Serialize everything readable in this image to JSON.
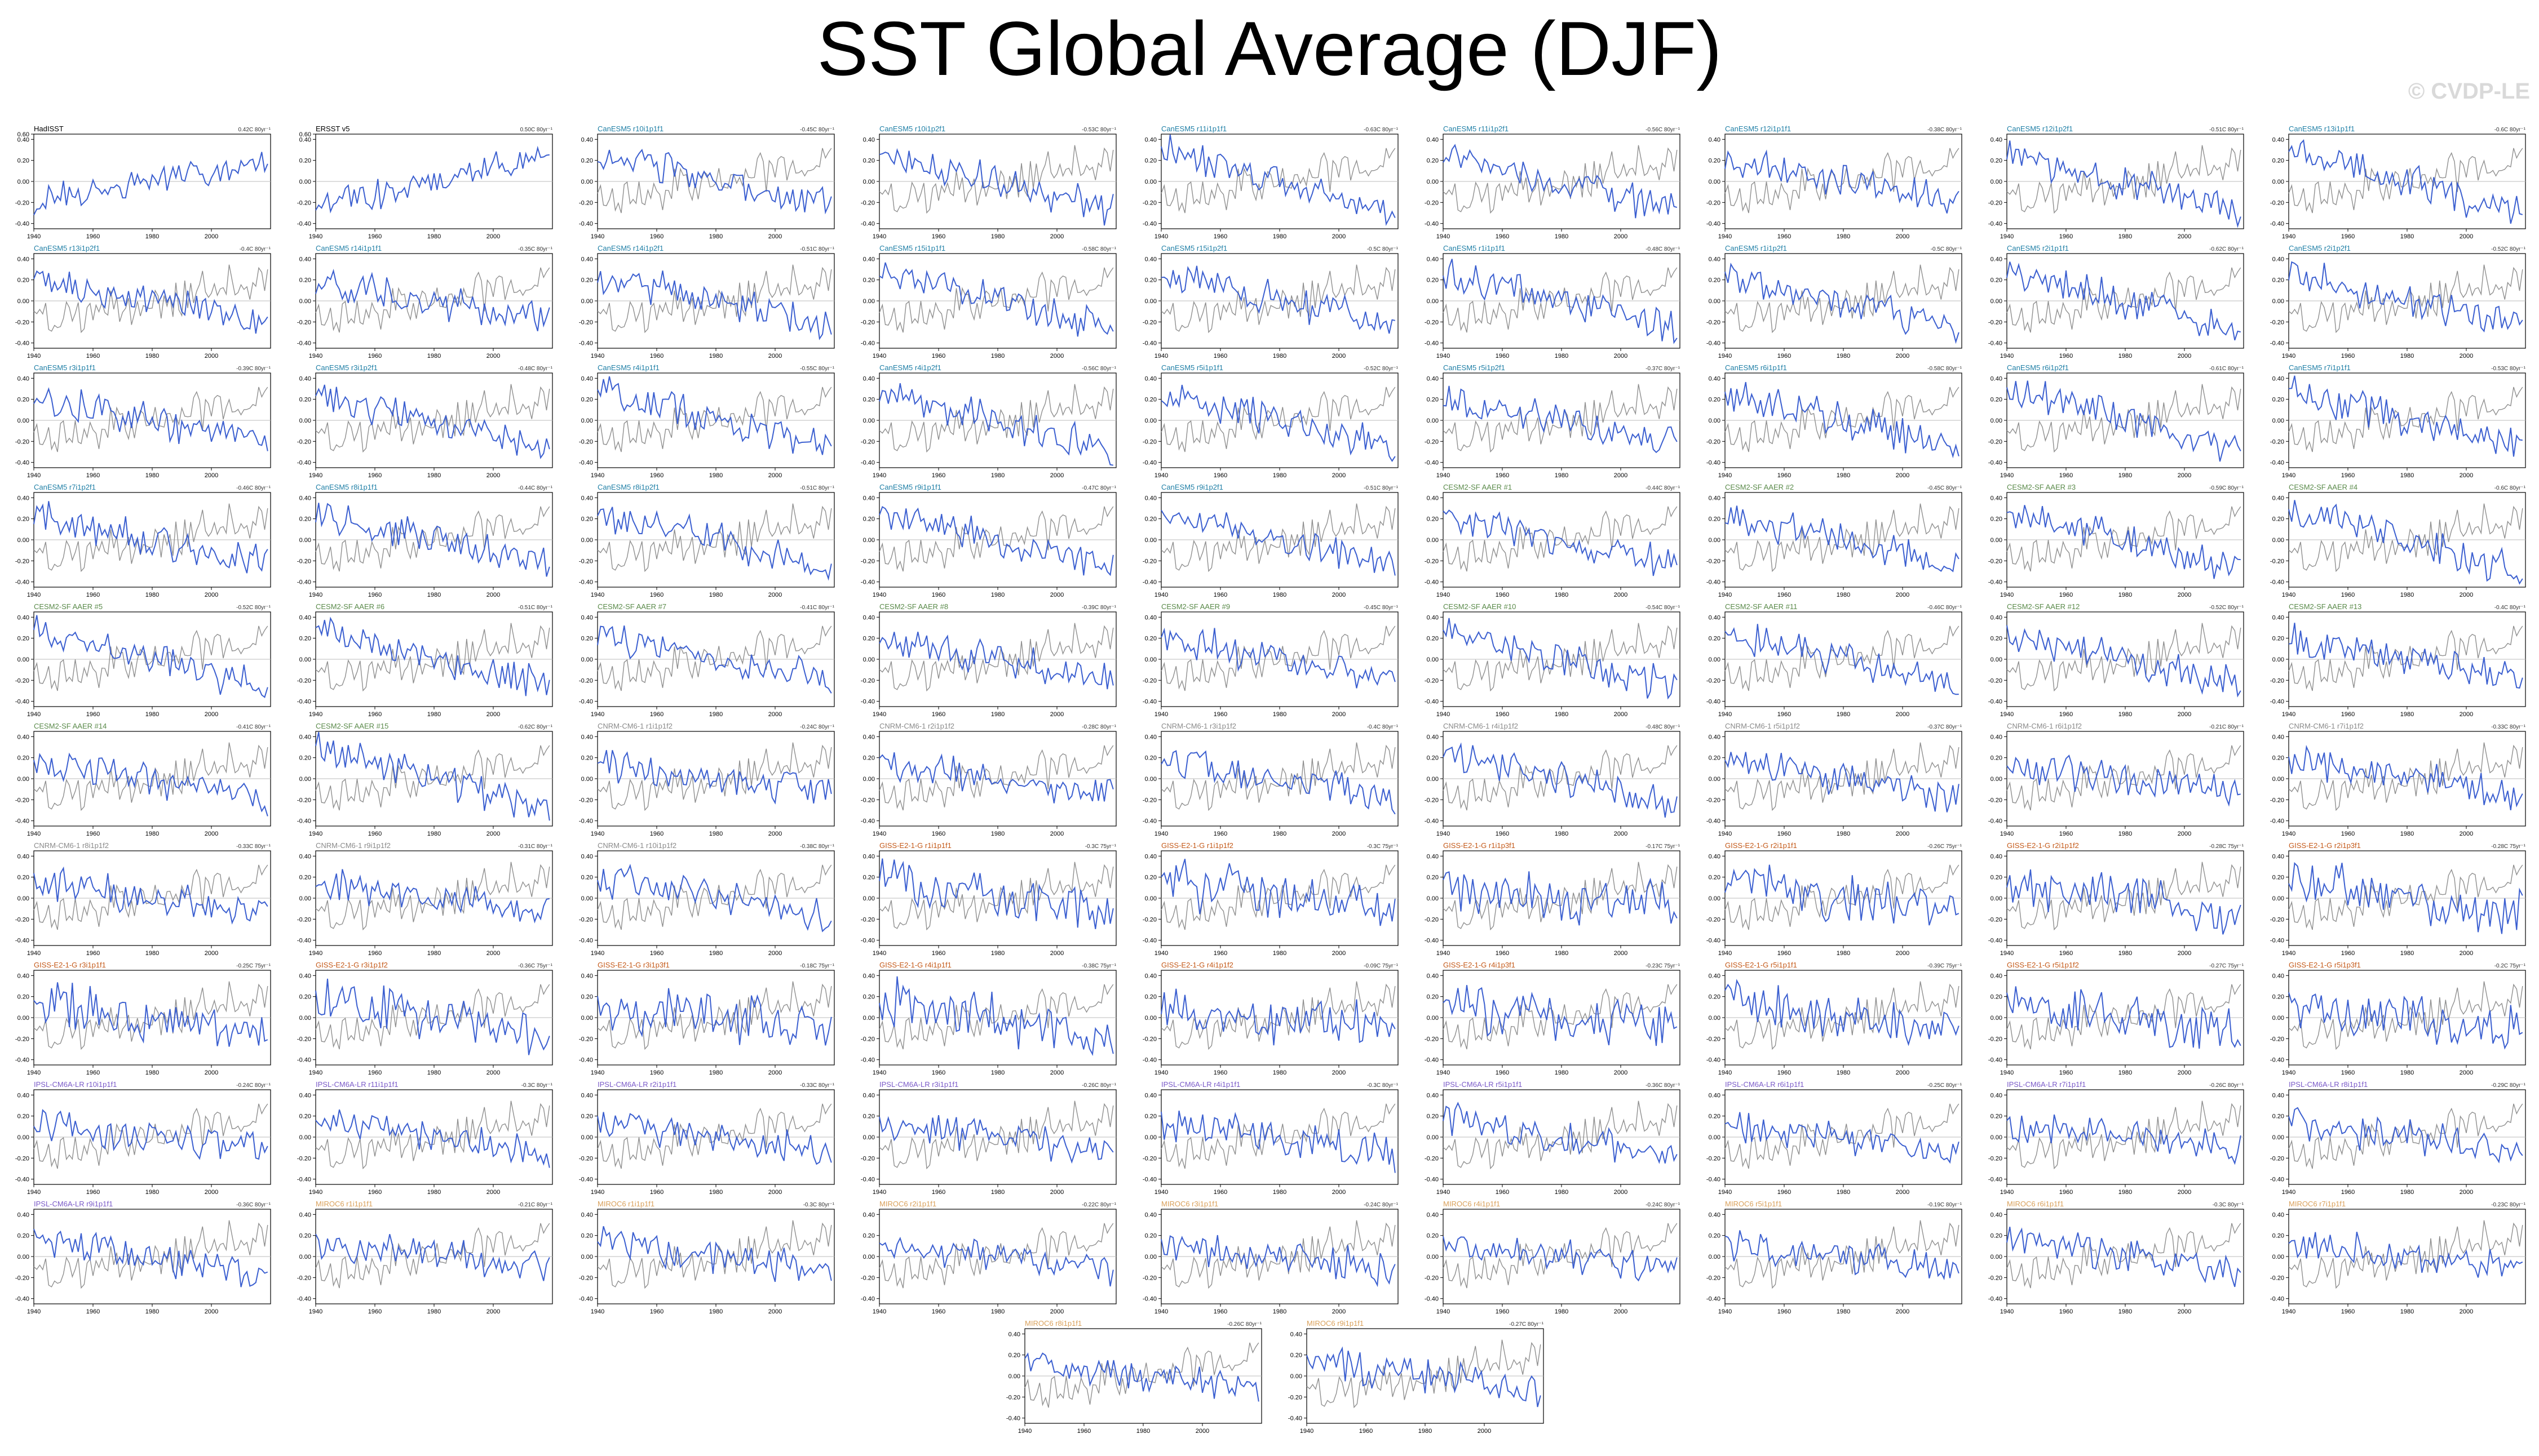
{
  "title": "SST Global Average (DJF)",
  "watermark": "© CVDP-LE",
  "colors": {
    "model": "#3b5fd0",
    "obs_line": "#8f8f8f",
    "obs_text": "#000000",
    "CanESM5": "#1f7fa6",
    "CESM2-SF": "#5a8a4a",
    "CNRM": "#8a8a8a",
    "GISS": "#c45a1a",
    "IPSL": "#7a5ac8",
    "MIROC6": "#d9a05a"
  },
  "chart_data": {
    "type": "line",
    "xlim": [
      1940,
      2020
    ],
    "ylim": [
      -0.45,
      0.45
    ],
    "x_ticks": [
      "1940",
      "1960",
      "1980",
      "2000"
    ],
    "y_ticks": [
      "0.40",
      "0.20",
      "0.00",
      "-0.20",
      "-0.40"
    ],
    "y_ticks_obs": [
      "0.60",
      "0.40",
      "0.20",
      "0.00",
      "-0.20",
      "-0.40"
    ],
    "y_ticks_short": [
      "0.40",
      "0.20",
      "0.00",
      "-0.20"
    ],
    "panels": [
      {
        "label": "HadISST",
        "trend": "0.42C 80yr⁻¹",
        "group": "obs"
      },
      {
        "label": "ERSST v5",
        "trend": "0.50C 80yr⁻¹",
        "group": "obs"
      },
      {
        "label": "CanESM5 r10i1p1f1",
        "trend": "-0.45C 80yr⁻¹",
        "group": "CanESM5"
      },
      {
        "label": "CanESM5 r10i1p2f1",
        "trend": "-0.53C 80yr⁻¹",
        "group": "CanESM5"
      },
      {
        "label": "CanESM5 r11i1p1f1",
        "trend": "-0.63C 80yr⁻¹",
        "group": "CanESM5"
      },
      {
        "label": "CanESM5 r11i1p2f1",
        "trend": "-0.56C 80yr⁻¹",
        "group": "CanESM5"
      },
      {
        "label": "CanESM5 r12i1p1f1",
        "trend": "-0.38C 80yr⁻¹",
        "group": "CanESM5"
      },
      {
        "label": "CanESM5 r12i1p2f1",
        "trend": "-0.51C 80yr⁻¹",
        "group": "CanESM5"
      },
      {
        "label": "CanESM5 r13i1p1f1",
        "trend": "-0.6C 80yr⁻¹",
        "group": "CanESM5"
      },
      {
        "label": "CanESM5 r13i1p2f1",
        "trend": "-0.4C 80yr⁻¹",
        "group": "CanESM5"
      },
      {
        "label": "CanESM5 r14i1p1f1",
        "trend": "-0.35C 80yr⁻¹",
        "group": "CanESM5"
      },
      {
        "label": "CanESM5 r14i1p2f1",
        "trend": "-0.51C 80yr⁻¹",
        "group": "CanESM5"
      },
      {
        "label": "CanESM5 r15i1p1f1",
        "trend": "-0.58C 80yr⁻¹",
        "group": "CanESM5"
      },
      {
        "label": "CanESM5 r15i1p2f1",
        "trend": "-0.5C 80yr⁻¹",
        "group": "CanESM5"
      },
      {
        "label": "CanESM5 r1i1p1f1",
        "trend": "-0.48C 80yr⁻¹",
        "group": "CanESM5"
      },
      {
        "label": "CanESM5 r1i1p2f1",
        "trend": "-0.5C 80yr⁻¹",
        "group": "CanESM5"
      },
      {
        "label": "CanESM5 r2i1p1f1",
        "trend": "-0.62C 80yr⁻¹",
        "group": "CanESM5"
      },
      {
        "label": "CanESM5 r2i1p2f1",
        "trend": "-0.52C 80yr⁻¹",
        "group": "CanESM5"
      },
      {
        "label": "CanESM5 r3i1p1f1",
        "trend": "-0.39C 80yr⁻¹",
        "group": "CanESM5"
      },
      {
        "label": "CanESM5 r3i1p2f1",
        "trend": "-0.48C 80yr⁻¹",
        "group": "CanESM5"
      },
      {
        "label": "CanESM5 r4i1p1f1",
        "trend": "-0.55C 80yr⁻¹",
        "group": "CanESM5"
      },
      {
        "label": "CanESM5 r4i1p2f1",
        "trend": "-0.56C 80yr⁻¹",
        "group": "CanESM5"
      },
      {
        "label": "CanESM5 r5i1p1f1",
        "trend": "-0.52C 80yr⁻¹",
        "group": "CanESM5"
      },
      {
        "label": "CanESM5 r5i1p2f1",
        "trend": "-0.37C 80yr⁻¹",
        "group": "CanESM5"
      },
      {
        "label": "CanESM5 r6i1p1f1",
        "trend": "-0.58C 80yr⁻¹",
        "group": "CanESM5"
      },
      {
        "label": "CanESM5 r6i1p2f1",
        "trend": "-0.61C 80yr⁻¹",
        "group": "CanESM5"
      },
      {
        "label": "CanESM5 r7i1p1f1",
        "trend": "-0.53C 80yr⁻¹",
        "group": "CanESM5"
      },
      {
        "label": "CanESM5 r7i1p2f1",
        "trend": "-0.46C 80yr⁻¹",
        "group": "CanESM5"
      },
      {
        "label": "CanESM5 r8i1p1f1",
        "trend": "-0.44C 80yr⁻¹",
        "group": "CanESM5"
      },
      {
        "label": "CanESM5 r8i1p2f1",
        "trend": "-0.51C 80yr⁻¹",
        "group": "CanESM5"
      },
      {
        "label": "CanESM5 r9i1p1f1",
        "trend": "-0.47C 80yr⁻¹",
        "group": "CanESM5"
      },
      {
        "label": "CanESM5 r9i1p2f1",
        "trend": "-0.51C 80yr⁻¹",
        "group": "CanESM5"
      },
      {
        "label": "CESM2-SF AAER #1",
        "trend": "-0.44C 80yr⁻¹",
        "group": "CESM2-SF"
      },
      {
        "label": "CESM2-SF AAER #2",
        "trend": "-0.45C 80yr⁻¹",
        "group": "CESM2-SF"
      },
      {
        "label": "CESM2-SF AAER #3",
        "trend": "-0.59C 80yr⁻¹",
        "group": "CESM2-SF"
      },
      {
        "label": "CESM2-SF AAER #4",
        "trend": "-0.6C 80yr⁻¹",
        "group": "CESM2-SF"
      },
      {
        "label": "CESM2-SF AAER #5",
        "trend": "-0.52C 80yr⁻¹",
        "group": "CESM2-SF"
      },
      {
        "label": "CESM2-SF AAER #6",
        "trend": "-0.51C 80yr⁻¹",
        "group": "CESM2-SF"
      },
      {
        "label": "CESM2-SF AAER #7",
        "trend": "-0.41C 80yr⁻¹",
        "group": "CESM2-SF"
      },
      {
        "label": "CESM2-SF AAER #8",
        "trend": "-0.39C 80yr⁻¹",
        "group": "CESM2-SF"
      },
      {
        "label": "CESM2-SF AAER #9",
        "trend": "-0.45C 80yr⁻¹",
        "group": "CESM2-SF"
      },
      {
        "label": "CESM2-SF AAER #10",
        "trend": "-0.54C 80yr⁻¹",
        "group": "CESM2-SF"
      },
      {
        "label": "CESM2-SF AAER #11",
        "trend": "-0.46C 80yr⁻¹",
        "group": "CESM2-SF"
      },
      {
        "label": "CESM2-SF AAER #12",
        "trend": "-0.52C 80yr⁻¹",
        "group": "CESM2-SF"
      },
      {
        "label": "CESM2-SF AAER #13",
        "trend": "-0.4C 80yr⁻¹",
        "group": "CESM2-SF"
      },
      {
        "label": "CESM2-SF AAER #14",
        "trend": "-0.41C 80yr⁻¹",
        "group": "CESM2-SF"
      },
      {
        "label": "CESM2-SF AAER #15",
        "trend": "-0.62C 80yr⁻¹",
        "group": "CESM2-SF"
      },
      {
        "label": "CNRM-CM6-1 r1i1p1f2",
        "trend": "-0.24C 80yr⁻¹",
        "group": "CNRM"
      },
      {
        "label": "CNRM-CM6-1 r2i1p1f2",
        "trend": "-0.28C 80yr⁻¹",
        "group": "CNRM"
      },
      {
        "label": "CNRM-CM6-1 r3i1p1f2",
        "trend": "-0.4C 80yr⁻¹",
        "group": "CNRM"
      },
      {
        "label": "CNRM-CM6-1 r4i1p1f2",
        "trend": "-0.48C 80yr⁻¹",
        "group": "CNRM"
      },
      {
        "label": "CNRM-CM6-1 r5i1p1f2",
        "trend": "-0.37C 80yr⁻¹",
        "group": "CNRM"
      },
      {
        "label": "CNRM-CM6-1 r6i1p1f2",
        "trend": "-0.21C 80yr⁻¹",
        "group": "CNRM"
      },
      {
        "label": "CNRM-CM6-1 r7i1p1f2",
        "trend": "-0.33C 80yr⁻¹",
        "group": "CNRM"
      },
      {
        "label": "CNRM-CM6-1 r8i1p1f2",
        "trend": "-0.33C 80yr⁻¹",
        "group": "CNRM"
      },
      {
        "label": "CNRM-CM6-1 r9i1p1f2",
        "trend": "-0.31C 80yr⁻¹",
        "group": "CNRM"
      },
      {
        "label": "CNRM-CM6-1 r10i1p1f2",
        "trend": "-0.38C 80yr⁻¹",
        "group": "CNRM"
      },
      {
        "label": "GISS-E2-1-G r1i1p1f1",
        "trend": "-0.3C 75yr⁻¹",
        "group": "GISS"
      },
      {
        "label": "GISS-E2-1-G r1i1p1f2",
        "trend": "-0.3C 75yr⁻¹",
        "group": "GISS"
      },
      {
        "label": "GISS-E2-1-G r1i1p3f1",
        "trend": "-0.17C 75yr⁻¹",
        "group": "GISS"
      },
      {
        "label": "GISS-E2-1-G r2i1p1f1",
        "trend": "-0.26C 75yr⁻¹",
        "group": "GISS"
      },
      {
        "label": "GISS-E2-1-G r2i1p1f2",
        "trend": "-0.28C 75yr⁻¹",
        "group": "GISS"
      },
      {
        "label": "GISS-E2-1-G r2i1p3f1",
        "trend": "-0.28C 75yr⁻¹",
        "group": "GISS"
      },
      {
        "label": "GISS-E2-1-G r3i1p1f1",
        "trend": "-0.25C 75yr⁻¹",
        "group": "GISS"
      },
      {
        "label": "GISS-E2-1-G r3i1p1f2",
        "trend": "-0.36C 75yr⁻¹",
        "group": "GISS"
      },
      {
        "label": "GISS-E2-1-G r3i1p3f1",
        "trend": "-0.18C 75yr⁻¹",
        "group": "GISS"
      },
      {
        "label": "GISS-E2-1-G r4i1p1f1",
        "trend": "-0.38C 75yr⁻¹",
        "group": "GISS"
      },
      {
        "label": "GISS-E2-1-G r4i1p1f2",
        "trend": "-0.09C 75yr⁻¹",
        "group": "GISS"
      },
      {
        "label": "GISS-E2-1-G r4i1p3f1",
        "trend": "-0.23C 75yr⁻¹",
        "group": "GISS"
      },
      {
        "label": "GISS-E2-1-G r5i1p1f1",
        "trend": "-0.39C 75yr⁻¹",
        "group": "GISS"
      },
      {
        "label": "GISS-E2-1-G r5i1p1f2",
        "trend": "-0.27C 75yr⁻¹",
        "group": "GISS"
      },
      {
        "label": "GISS-E2-1-G r5i1p3f1",
        "trend": "-0.2C 75yr⁻¹",
        "group": "GISS"
      },
      {
        "label": "IPSL-CM6A-LR r10i1p1f1",
        "trend": "-0.24C 80yr⁻¹",
        "group": "IPSL"
      },
      {
        "label": "IPSL-CM6A-LR r11i1p1f1",
        "trend": "-0.3C 80yr⁻¹",
        "group": "IPSL"
      },
      {
        "label": "IPSL-CM6A-LR r2i1p1f1",
        "trend": "-0.33C 80yr⁻¹",
        "group": "IPSL"
      },
      {
        "label": "IPSL-CM6A-LR r3i1p1f1",
        "trend": "-0.26C 80yr⁻¹",
        "group": "IPSL"
      },
      {
        "label": "IPSL-CM6A-LR r4i1p1f1",
        "trend": "-0.3C 80yr⁻¹",
        "group": "IPSL"
      },
      {
        "label": "IPSL-CM6A-LR r5i1p1f1",
        "trend": "-0.36C 80yr⁻¹",
        "group": "IPSL"
      },
      {
        "label": "IPSL-CM6A-LR r6i1p1f1",
        "trend": "-0.25C 80yr⁻¹",
        "group": "IPSL"
      },
      {
        "label": "IPSL-CM6A-LR r7i1p1f1",
        "trend": "-0.26C 80yr⁻¹",
        "group": "IPSL"
      },
      {
        "label": "IPSL-CM6A-LR r8i1p1f1",
        "trend": "-0.29C 80yr⁻¹",
        "group": "IPSL"
      },
      {
        "label": "IPSL-CM6A-LR r9i1p1f1",
        "trend": "-0.36C 80yr⁻¹",
        "group": "IPSL"
      },
      {
        "label": "MIROC6 r1i1p1f1",
        "trend": "-0.21C 80yr⁻¹",
        "group": "MIROC6"
      },
      {
        "label": "MIROC6 r1i1p1f1",
        "trend": "-0.3C 80yr⁻¹",
        "group": "MIROC6"
      },
      {
        "label": "MIROC6 r2i1p1f1",
        "trend": "-0.22C 80yr⁻¹",
        "group": "MIROC6"
      },
      {
        "label": "MIROC6 r3i1p1f1",
        "trend": "-0.24C 80yr⁻¹",
        "group": "MIROC6"
      },
      {
        "label": "MIROC6 r4i1p1f1",
        "trend": "-0.24C 80yr⁻¹",
        "group": "MIROC6"
      },
      {
        "label": "MIROC6 r5i1p1f1",
        "trend": "-0.19C 80yr⁻¹",
        "group": "MIROC6"
      },
      {
        "label": "MIROC6 r6i1p1f1",
        "trend": "-0.3C 80yr⁻¹",
        "group": "MIROC6"
      },
      {
        "label": "MIROC6 r7i1p1f1",
        "trend": "-0.23C 80yr⁻¹",
        "group": "MIROC6"
      },
      {
        "label": "MIROC6 r8i1p1f1",
        "trend": "-0.26C 80yr⁻¹",
        "group": "MIROC6"
      },
      {
        "label": "MIROC6 r9i1p1f1",
        "trend": "-0.27C 80yr⁻¹",
        "group": "MIROC6"
      }
    ]
  }
}
